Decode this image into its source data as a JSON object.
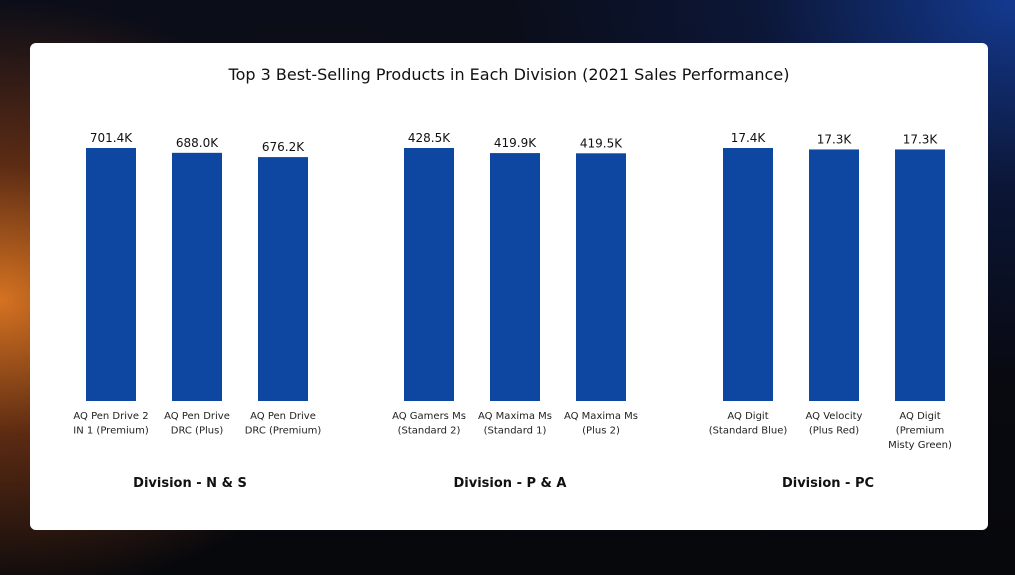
{
  "chart_data": {
    "type": "bar",
    "title": "Top 3 Best-Selling Products in Each Division (2021 Sales Performance)",
    "groups": [
      {
        "division": "Division - N & S",
        "products": [
          {
            "label": [
              "AQ Pen Drive 2",
              "IN 1 (Premium)"
            ],
            "value": 701.4,
            "value_label": "701.4K"
          },
          {
            "label": [
              "AQ Pen Drive",
              "DRC (Plus)"
            ],
            "value": 688.0,
            "value_label": "688.0K"
          },
          {
            "label": [
              "AQ Pen Drive",
              "DRC (Premium)"
            ],
            "value": 676.2,
            "value_label": "676.2K"
          }
        ]
      },
      {
        "division": "Division - P & A",
        "products": [
          {
            "label": [
              "AQ Gamers Ms",
              "(Standard 2)"
            ],
            "value": 428.5,
            "value_label": "428.5K"
          },
          {
            "label": [
              "AQ Maxima Ms",
              "(Standard 1)"
            ],
            "value": 419.9,
            "value_label": "419.9K"
          },
          {
            "label": [
              "AQ Maxima Ms",
              "(Plus 2)"
            ],
            "value": 419.5,
            "value_label": "419.5K"
          }
        ]
      },
      {
        "division": "Division - PC",
        "products": [
          {
            "label": [
              "AQ Digit",
              "(Standard Blue)"
            ],
            "value": 17.4,
            "value_label": "17.4K"
          },
          {
            "label": [
              "AQ Velocity",
              "(Plus Red)"
            ],
            "value": 17.3,
            "value_label": "17.3K"
          },
          {
            "label": [
              "AQ Digit",
              "(Premium",
              "Misty Green)"
            ],
            "value": 17.3,
            "value_label": "17.3K"
          }
        ]
      }
    ],
    "unit": "K",
    "bar_color": "#0d47a1",
    "grid": false,
    "legend": "none"
  }
}
